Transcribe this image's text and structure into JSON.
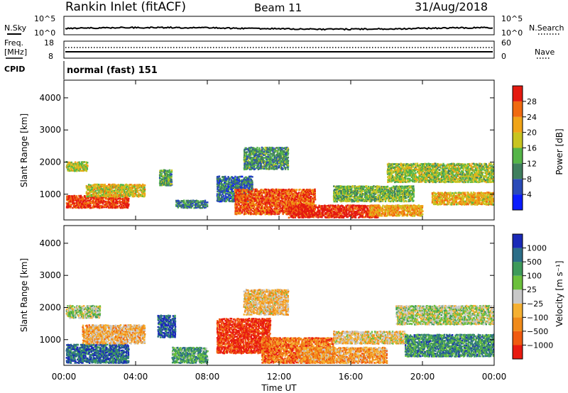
{
  "header": {
    "title": "Rankin Inlet (fitACF)",
    "beam": "Beam 11",
    "date": "31/Aug/2018"
  },
  "side_labels": {
    "nsky": "N.Sky",
    "nsearch": "N.Search",
    "freq_line1": "Freq.",
    "freq_line2": "[MHz]",
    "nave": "Nave",
    "cpid": "CPID",
    "cpid_value": "normal (fast) 151"
  },
  "noise_panel": {
    "left_ticks": [
      "10^5",
      "10^0"
    ],
    "right_ticks": [
      "10^5",
      "10^0"
    ]
  },
  "freq_panel": {
    "left_ticks": [
      "18",
      "8"
    ],
    "right_ticks": [
      "60",
      "0"
    ]
  },
  "chart_data": [
    {
      "type": "heatmap",
      "panel": "power",
      "ylabel": "Slant Range [km]",
      "yticks": [
        "1000",
        "2000",
        "3000",
        "4000"
      ],
      "ylim": [
        200,
        4550
      ],
      "xlim": [
        0,
        24
      ],
      "colorbar_label": "Power [dB]",
      "colorbar_ticks": [
        "4",
        "8",
        "12",
        "16",
        "20",
        "24",
        "28"
      ],
      "colorbar_colors": [
        "#0a1cff",
        "#2a4ab8",
        "#3f7f5e",
        "#55b548",
        "#c8c420",
        "#f0a418",
        "#f06a10",
        "#e41a10"
      ],
      "bands": [
        {
          "t0": 0.1,
          "t1": 3.6,
          "r0": 600,
          "r1": 1000,
          "level": 0.92
        },
        {
          "t0": 1.2,
          "t1": 4.5,
          "r0": 950,
          "r1": 1350,
          "level": 0.6
        },
        {
          "t0": 0.1,
          "t1": 1.3,
          "r0": 1750,
          "r1": 2050,
          "level": 0.55
        },
        {
          "t0": 5.3,
          "t1": 6.0,
          "r0": 1300,
          "r1": 1800,
          "level": 0.4
        },
        {
          "t0": 6.2,
          "t1": 8.0,
          "r0": 600,
          "r1": 850,
          "level": 0.3
        },
        {
          "t0": 8.5,
          "t1": 10.5,
          "r0": 800,
          "r1": 1600,
          "level": 0.25
        },
        {
          "t0": 9.5,
          "t1": 14.0,
          "r0": 400,
          "r1": 1200,
          "level": 0.85
        },
        {
          "t0": 12.5,
          "t1": 17.5,
          "r0": 300,
          "r1": 700,
          "level": 0.95
        },
        {
          "t0": 15.0,
          "t1": 19.5,
          "r0": 800,
          "r1": 1300,
          "level": 0.45
        },
        {
          "t0": 17.0,
          "t1": 20.0,
          "r0": 350,
          "r1": 700,
          "level": 0.7
        },
        {
          "t0": 18.0,
          "t1": 24.0,
          "r0": 1400,
          "r1": 2000,
          "level": 0.5
        },
        {
          "t0": 20.5,
          "t1": 24.0,
          "r0": 700,
          "r1": 1100,
          "level": 0.65
        },
        {
          "t0": 10.0,
          "t1": 12.5,
          "r0": 1800,
          "r1": 2500,
          "level": 0.35
        }
      ]
    },
    {
      "type": "heatmap",
      "panel": "velocity",
      "ylabel": "Slant Range [km]",
      "yticks": [
        "1000",
        "2000",
        "3000",
        "4000"
      ],
      "ylim": [
        200,
        4550
      ],
      "xlim": [
        0,
        24
      ],
      "xlabel": "Time UT",
      "xticks": [
        "00:00",
        "04:00",
        "08:00",
        "12:00",
        "16:00",
        "20:00",
        "00:00"
      ],
      "colorbar_label": "Velocity [m s⁻¹]",
      "colorbar_ticks": [
        "1000",
        "500",
        "100",
        "25",
        "−25",
        "−100",
        "−500",
        "−1000"
      ],
      "colorbar_colors": [
        "#1a2ab8",
        "#2c6e88",
        "#3e9a5a",
        "#6cc03c",
        "#c8c8c8",
        "#f5b032",
        "#f08a1a",
        "#f05a10",
        "#e81a10"
      ],
      "bands": [
        {
          "t0": 0.1,
          "t1": 3.6,
          "r0": 300,
          "r1": 900,
          "level": 0.15
        },
        {
          "t0": 1.0,
          "t1": 4.5,
          "r0": 900,
          "r1": 1500,
          "level": 0.62
        },
        {
          "t0": 0.1,
          "t1": 2.0,
          "r0": 1700,
          "r1": 2100,
          "level": 0.44
        },
        {
          "t0": 5.2,
          "t1": 6.2,
          "r0": 1100,
          "r1": 1800,
          "level": 0.1
        },
        {
          "t0": 6.0,
          "t1": 8.0,
          "r0": 300,
          "r1": 800,
          "level": 0.3
        },
        {
          "t0": 8.5,
          "t1": 11.5,
          "r0": 600,
          "r1": 1700,
          "level": 0.92
        },
        {
          "t0": 11.0,
          "t1": 15.0,
          "r0": 300,
          "r1": 1100,
          "level": 0.78
        },
        {
          "t0": 13.0,
          "t1": 18.0,
          "r0": 300,
          "r1": 800,
          "level": 0.68
        },
        {
          "t0": 15.0,
          "t1": 19.0,
          "r0": 900,
          "r1": 1300,
          "level": 0.56
        },
        {
          "t0": 18.5,
          "t1": 24.0,
          "r0": 1500,
          "r1": 2100,
          "level": 0.45
        },
        {
          "t0": 19.0,
          "t1": 24.0,
          "r0": 500,
          "r1": 1200,
          "level": 0.25
        },
        {
          "t0": 10.0,
          "t1": 12.5,
          "r0": 1800,
          "r1": 2600,
          "level": 0.6
        }
      ]
    }
  ]
}
